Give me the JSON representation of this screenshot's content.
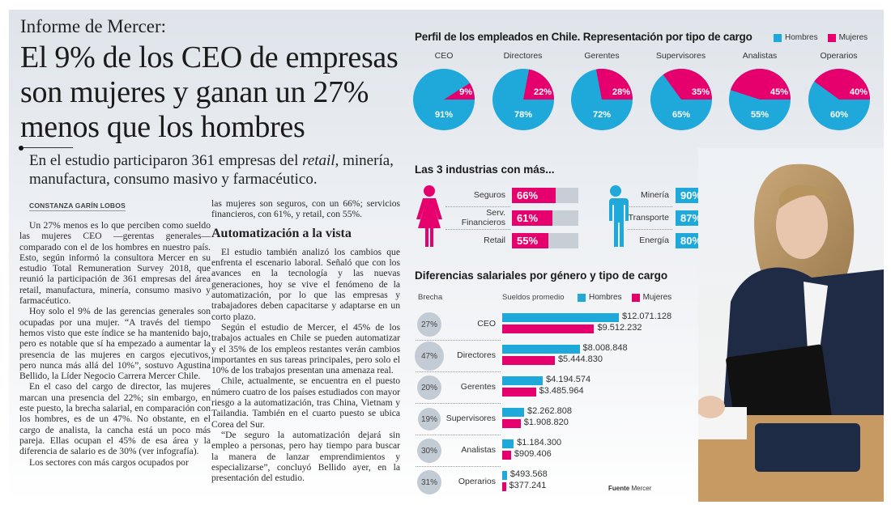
{
  "article": {
    "kicker": "Informe de Mercer:",
    "headline": "El 9% de los CEO de empresas son mujeres y ganan un 27% menos que los hombres",
    "subhead_before": "En el estudio participaron 361 empresas del ",
    "subhead_italic": "retail",
    "subhead_after": ", minería, manufactura, consumo masivo y farmacéutico.",
    "byline": "CONSTANZA GARÍN LOBOS",
    "col1": [
      "Un 27% menos es lo que perciben como sueldo las mujeres CEO —gerentas generales— comparado con el de los hombres en nuestro país. Esto, según informó la consultora Mercer en su estudio Total Remuneration Survey 2018, que reunió la participación de 361 empresas del área retail, manufactura, minería, consumo masivo y farmacéutico.",
      "Hoy solo el 9% de las gerencias generales son ocupadas por una mujer. “A través del tiempo hemos visto que este índice se ha mantenido bajo, pero es notable que sí ha empezado a aumentar la presencia de las mujeres en cargos ejecutivos, pero nunca más allá del 10%”, sostuvo Agustina Bellido, la Líder Negocio Carrera Mercer Chile.",
      "En el caso del cargo de director, las mujeres marcan una presencia del 22%; sin embargo, en este puesto, la brecha salarial, en comparación con los hombres, es de un 47%. No obstante, en el cargo de analista, la cancha está un poco más pareja. Ellas ocupan el 45% de esa área y la diferencia de salario es de 30% (ver infografía).",
      "Los sectores con más cargos ocupados por"
    ],
    "col2_lead": "las mujeres son seguros, con un 66%; servicios financieros, con 61%, y retail, con 55%.",
    "section_heading": "Automatización a la vista",
    "col2": [
      "El estudio también analizó los cambios que enfrenta el escenario laboral. Señaló que con los avances en la tecnología y las nuevas generaciones, hoy se vive el fenómeno de la automatización, por lo que las empresas y trabajadores deben capacitarse y adaptarse en un corto plazo.",
      "Según el estudio de Mercer, el 45% de los trabajos actuales en Chile se pueden automatizar y el 35% de los empleos restantes verán cambios importantes en sus tareas principales, pero solo el 10% de los trabajos presentan una amenaza real.",
      "Chile, actualmente, se encuentra en el puesto número cuatro de los países estudiados con mayor riesgo a la automatización, tras China, Vietnam y Tailandia. También en el cuarto puesto se ubica Corea del Sur.",
      "“De seguro la automatización dejará sin empleo a personas, pero hay tiempo para buscar la manera de lanzar emprendimientos y especializarse”, concluyó Bellido ayer, en la presentación del estudio."
    ]
  },
  "colors": {
    "men": "#1fa9db",
    "women": "#e5006d",
    "track": "#c7ced6",
    "gap_circle": "#c3ccd5"
  },
  "legend": {
    "men": "Hombres",
    "women": "Mujeres"
  },
  "chart_data": [
    {
      "type": "pie",
      "title": "Perfil de los empleados en Chile. Representación por tipo de cargo",
      "legend": [
        "Hombres",
        "Mujeres"
      ],
      "legend_position": "top-right",
      "categories": [
        "CEO",
        "Directores",
        "Gerentes",
        "Supervisores",
        "Analistas",
        "Operarios"
      ],
      "series": [
        {
          "name": "Hombres",
          "values": [
            91,
            78,
            72,
            65,
            55,
            60
          ]
        },
        {
          "name": "Mujeres",
          "values": [
            9,
            22,
            28,
            35,
            45,
            40
          ]
        }
      ]
    },
    {
      "type": "bar",
      "title": "Las 3 industrias con más...",
      "groups": [
        {
          "name": "Mujeres",
          "icon": "woman-icon",
          "categories": [
            "Seguros",
            "Serv. Financieros",
            "Retail"
          ],
          "values": [
            66,
            61,
            55
          ]
        },
        {
          "name": "Hombres",
          "icon": "man-icon",
          "categories": [
            "Minería",
            "Transporte",
            "Energía"
          ],
          "values": [
            90,
            87,
            80
          ]
        }
      ],
      "unit": "%",
      "ylim": [
        0,
        100
      ]
    },
    {
      "type": "bar",
      "title": "Diferencias salariales por género y tipo de cargo",
      "gap_header": "Brecha",
      "value_header": "Sueldos promedio",
      "legend": [
        "Hombres",
        "Mujeres"
      ],
      "categories": [
        "CEO",
        "Directores",
        "Gerentes",
        "Supervisores",
        "Analistas",
        "Operarios"
      ],
      "gaps": [
        "27%",
        "47%",
        "20%",
        "19%",
        "30%",
        "31%"
      ],
      "series": [
        {
          "name": "Hombres",
          "values": [
            12071128,
            8008848,
            4194574,
            2262808,
            1184300,
            493568
          ],
          "labels": [
            "$12.071.128",
            "$8.008.848",
            "$4.194.574",
            "$2.262.808",
            "$1.184.300",
            "$493.568"
          ]
        },
        {
          "name": "Mujeres",
          "values": [
            9512232,
            5444830,
            3485964,
            1908820,
            909406,
            377241
          ],
          "labels": [
            "$9.512.232",
            "$5.444.830",
            "$3.485.964",
            "$1.908.820",
            "$909.406",
            "$377.241"
          ]
        }
      ],
      "source_label": "Fuente",
      "source": "Mercer"
    }
  ]
}
